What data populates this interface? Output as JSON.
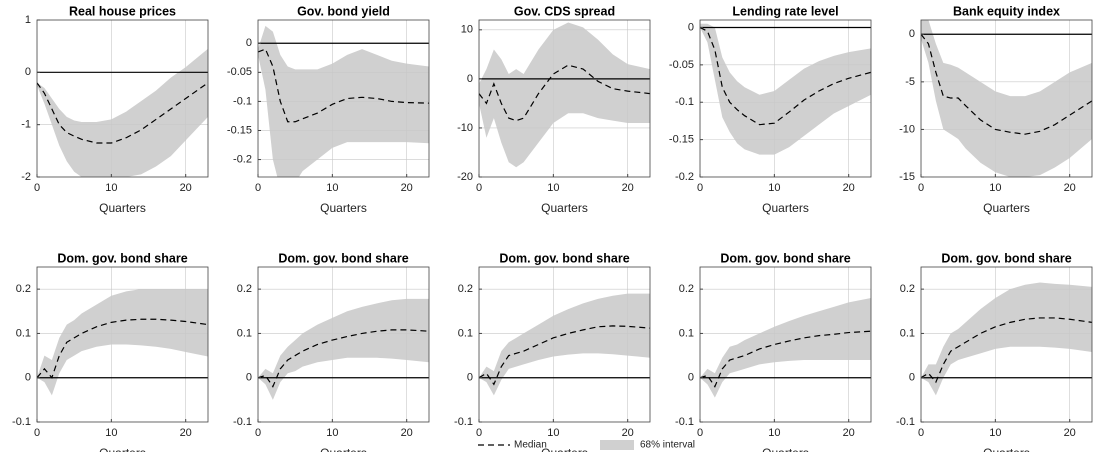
{
  "legend": {
    "median": "Median",
    "interval": "68% interval",
    "median_color": "#000000",
    "interval_color": "#d0d0d0"
  },
  "chart_data": [
    {
      "type": "band-line",
      "title": "Real house prices",
      "x_label": "Quarters",
      "x": [
        0,
        1,
        2,
        3,
        4,
        5,
        6,
        8,
        10,
        12,
        14,
        16,
        18,
        20,
        23
      ],
      "xlim": [
        0,
        23
      ],
      "xticks": [
        0,
        10,
        20
      ],
      "ylim": [
        -2,
        1
      ],
      "yticks": [
        -2,
        -1,
        0,
        1
      ],
      "grid": true,
      "median": [
        -0.2,
        -0.4,
        -0.7,
        -1.0,
        -1.15,
        -1.22,
        -1.28,
        -1.35,
        -1.35,
        -1.25,
        -1.1,
        -0.9,
        -0.7,
        -0.5,
        -0.2
      ],
      "lower": [
        -0.25,
        -0.6,
        -1.0,
        -1.4,
        -1.7,
        -1.9,
        -2.0,
        -2.0,
        -2.0,
        -2.0,
        -1.95,
        -1.8,
        -1.6,
        -1.3,
        -0.85
      ],
      "upper": [
        -0.2,
        -0.3,
        -0.5,
        -0.7,
        -0.85,
        -0.92,
        -0.95,
        -0.95,
        -0.9,
        -0.75,
        -0.55,
        -0.35,
        -0.1,
        0.1,
        0.45
      ]
    },
    {
      "type": "band-line",
      "title": "Gov. bond yield",
      "x_label": "Quarters",
      "x": [
        0,
        1,
        2,
        3,
        4,
        5,
        6,
        8,
        10,
        12,
        14,
        16,
        18,
        20,
        23
      ],
      "xlim": [
        0,
        23
      ],
      "xticks": [
        0,
        10,
        20
      ],
      "ylim": [
        -0.23,
        0.04
      ],
      "yticks": [
        -0.2,
        -0.15,
        -0.1,
        -0.05,
        0
      ],
      "grid": true,
      "median": [
        -0.015,
        -0.01,
        -0.04,
        -0.1,
        -0.135,
        -0.135,
        -0.13,
        -0.12,
        -0.105,
        -0.095,
        -0.093,
        -0.095,
        -0.1,
        -0.102,
        -0.103
      ],
      "lower": [
        -0.02,
        -0.08,
        -0.2,
        -0.25,
        -0.25,
        -0.24,
        -0.22,
        -0.2,
        -0.18,
        -0.17,
        -0.17,
        -0.17,
        -0.17,
        -0.17,
        -0.172
      ],
      "upper": [
        -0.01,
        0.03,
        0.02,
        -0.02,
        -0.04,
        -0.045,
        -0.045,
        -0.045,
        -0.035,
        -0.02,
        -0.01,
        -0.02,
        -0.03,
        -0.035,
        -0.04
      ]
    },
    {
      "type": "band-line",
      "title": "Gov. CDS spread",
      "x_label": "Quarters",
      "x": [
        0,
        1,
        2,
        3,
        4,
        5,
        6,
        8,
        10,
        12,
        14,
        16,
        18,
        20,
        23
      ],
      "xlim": [
        0,
        23
      ],
      "xticks": [
        0,
        10,
        20
      ],
      "ylim": [
        -20,
        12
      ],
      "yticks": [
        -20,
        -10,
        0,
        10
      ],
      "grid": true,
      "median": [
        -3,
        -5,
        -1,
        -5,
        -8,
        -8.5,
        -8,
        -3,
        1,
        2.8,
        2,
        -0.5,
        -2,
        -2.5,
        -3
      ],
      "lower": [
        -5,
        -12,
        -8,
        -13,
        -17,
        -18,
        -17,
        -13,
        -9,
        -7,
        -7,
        -8,
        -8.5,
        -9,
        -9
      ],
      "upper": [
        -1,
        2,
        6,
        4,
        1,
        2,
        1,
        6,
        10,
        11.5,
        10.5,
        8,
        5,
        3,
        2
      ]
    },
    {
      "type": "band-line",
      "title": "Lending rate level",
      "x_label": "Quarters",
      "x": [
        0,
        1,
        2,
        3,
        4,
        5,
        6,
        8,
        10,
        12,
        14,
        16,
        18,
        20,
        23
      ],
      "xlim": [
        0,
        23
      ],
      "xticks": [
        0,
        10,
        20
      ],
      "ylim": [
        -0.2,
        0.01
      ],
      "yticks": [
        -0.2,
        -0.15,
        -0.1,
        -0.05,
        0
      ],
      "grid": true,
      "median": [
        0,
        -0.005,
        -0.03,
        -0.08,
        -0.1,
        -0.11,
        -0.118,
        -0.13,
        -0.128,
        -0.113,
        -0.097,
        -0.085,
        -0.075,
        -0.068,
        -0.06
      ],
      "lower": [
        0,
        -0.02,
        -0.07,
        -0.12,
        -0.14,
        -0.155,
        -0.163,
        -0.17,
        -0.17,
        -0.16,
        -0.145,
        -0.13,
        -0.115,
        -0.105,
        -0.09
      ],
      "upper": [
        0.005,
        0.005,
        0,
        -0.04,
        -0.06,
        -0.072,
        -0.08,
        -0.09,
        -0.085,
        -0.07,
        -0.055,
        -0.045,
        -0.038,
        -0.033,
        -0.028
      ]
    },
    {
      "type": "band-line",
      "title": "Bank equity index",
      "x_label": "Quarters",
      "x": [
        0,
        1,
        2,
        3,
        4,
        5,
        6,
        8,
        10,
        12,
        14,
        16,
        18,
        20,
        23
      ],
      "xlim": [
        0,
        23
      ],
      "xticks": [
        0,
        10,
        20
      ],
      "ylim": [
        -15,
        1.5
      ],
      "yticks": [
        -15,
        -10,
        -5,
        0
      ],
      "grid": true,
      "median": [
        0,
        -1,
        -4,
        -6.5,
        -6.7,
        -6.7,
        -7.5,
        -9,
        -10,
        -10.3,
        -10.5,
        -10.2,
        -9.5,
        -8.5,
        -7
      ],
      "lower": [
        -0.5,
        -3,
        -7,
        -10,
        -10.5,
        -11,
        -12,
        -13.5,
        -14.5,
        -15,
        -15,
        -14.8,
        -14,
        -13,
        -11
      ],
      "upper": [
        1.5,
        1.5,
        -1,
        -3,
        -3.2,
        -3.5,
        -4,
        -5,
        -6,
        -6.5,
        -6.5,
        -6,
        -5,
        -4,
        -3
      ]
    },
    {
      "type": "band-line",
      "title": "Dom. gov. bond share",
      "x_label": "Quarters",
      "x": [
        0,
        1,
        2,
        3,
        4,
        5,
        6,
        8,
        10,
        12,
        14,
        16,
        18,
        20,
        23
      ],
      "xlim": [
        0,
        23
      ],
      "xticks": [
        0,
        10,
        20
      ],
      "ylim": [
        -0.1,
        0.25
      ],
      "yticks": [
        -0.1,
        0,
        0.1,
        0.2
      ],
      "grid": true,
      "median": [
        0,
        0.02,
        0,
        0.05,
        0.08,
        0.09,
        0.1,
        0.115,
        0.125,
        0.13,
        0.132,
        0.132,
        0.13,
        0.127,
        0.12
      ],
      "lower": [
        0,
        -0.01,
        -0.04,
        0.01,
        0.04,
        0.05,
        0.06,
        0.07,
        0.075,
        0.075,
        0.073,
        0.07,
        0.065,
        0.058,
        0.048
      ],
      "upper": [
        0,
        0.05,
        0.04,
        0.09,
        0.12,
        0.13,
        0.145,
        0.165,
        0.185,
        0.195,
        0.2,
        0.2,
        0.2,
        0.2,
        0.2
      ]
    },
    {
      "type": "band-line",
      "title": "Dom. gov. bond share",
      "x_label": "Quarters",
      "x": [
        0,
        1,
        2,
        3,
        4,
        5,
        6,
        8,
        10,
        12,
        14,
        16,
        18,
        20,
        23
      ],
      "xlim": [
        0,
        23
      ],
      "xticks": [
        0,
        10,
        20
      ],
      "ylim": [
        -0.1,
        0.25
      ],
      "yticks": [
        -0.1,
        0,
        0.1,
        0.2
      ],
      "grid": true,
      "median": [
        0,
        0.005,
        -0.02,
        0.02,
        0.04,
        0.05,
        0.06,
        0.075,
        0.085,
        0.093,
        0.1,
        0.105,
        0.108,
        0.108,
        0.105
      ],
      "lower": [
        0,
        -0.015,
        -0.05,
        -0.01,
        0.01,
        0.015,
        0.025,
        0.035,
        0.04,
        0.045,
        0.045,
        0.045,
        0.043,
        0.04,
        0.035
      ],
      "upper": [
        0,
        0.02,
        0.01,
        0.05,
        0.07,
        0.085,
        0.1,
        0.12,
        0.135,
        0.15,
        0.16,
        0.168,
        0.175,
        0.178,
        0.178
      ]
    },
    {
      "type": "band-line",
      "title": "Dom. gov. bond share",
      "x_label": "Quarters",
      "x": [
        0,
        1,
        2,
        3,
        4,
        5,
        6,
        8,
        10,
        12,
        14,
        16,
        18,
        20,
        23
      ],
      "xlim": [
        0,
        23
      ],
      "xticks": [
        0,
        10,
        20
      ],
      "ylim": [
        -0.1,
        0.25
      ],
      "yticks": [
        -0.1,
        0,
        0.1,
        0.2
      ],
      "grid": true,
      "median": [
        0,
        0.01,
        -0.015,
        0.025,
        0.05,
        0.055,
        0.06,
        0.075,
        0.09,
        0.1,
        0.108,
        0.115,
        0.117,
        0.116,
        0.112
      ],
      "lower": [
        0,
        -0.01,
        -0.04,
        -0.005,
        0.02,
        0.025,
        0.03,
        0.04,
        0.048,
        0.052,
        0.055,
        0.055,
        0.053,
        0.05,
        0.045
      ],
      "upper": [
        0,
        0.025,
        0.015,
        0.06,
        0.08,
        0.09,
        0.1,
        0.12,
        0.14,
        0.155,
        0.168,
        0.178,
        0.185,
        0.19,
        0.19
      ]
    },
    {
      "type": "band-line",
      "title": "Dom. gov. bond share",
      "x_label": "Quarters",
      "x": [
        0,
        1,
        2,
        3,
        4,
        5,
        6,
        8,
        10,
        12,
        14,
        16,
        18,
        20,
        23
      ],
      "xlim": [
        0,
        23
      ],
      "xticks": [
        0,
        10,
        20
      ],
      "ylim": [
        -0.1,
        0.25
      ],
      "yticks": [
        -0.1,
        0,
        0.1,
        0.2
      ],
      "grid": true,
      "median": [
        0,
        0.005,
        -0.02,
        0.02,
        0.04,
        0.045,
        0.05,
        0.065,
        0.075,
        0.083,
        0.09,
        0.095,
        0.098,
        0.102,
        0.105
      ],
      "lower": [
        0,
        -0.015,
        -0.045,
        -0.01,
        0.01,
        0.015,
        0.02,
        0.03,
        0.035,
        0.038,
        0.04,
        0.04,
        0.04,
        0.04,
        0.04
      ],
      "upper": [
        0,
        0.02,
        0.01,
        0.045,
        0.07,
        0.075,
        0.085,
        0.1,
        0.115,
        0.128,
        0.14,
        0.15,
        0.16,
        0.17,
        0.18
      ]
    },
    {
      "type": "band-line",
      "title": "Dom. gov. bond share",
      "x_label": "Quarters",
      "x": [
        0,
        1,
        2,
        3,
        4,
        5,
        6,
        8,
        10,
        12,
        14,
        16,
        18,
        20,
        23
      ],
      "xlim": [
        0,
        23
      ],
      "xticks": [
        0,
        10,
        20
      ],
      "ylim": [
        -0.1,
        0.25
      ],
      "yticks": [
        -0.1,
        0,
        0.1,
        0.2
      ],
      "grid": true,
      "median": [
        0,
        0.01,
        -0.01,
        0.03,
        0.06,
        0.07,
        0.08,
        0.1,
        0.115,
        0.125,
        0.132,
        0.135,
        0.135,
        0.132,
        0.125
      ],
      "lower": [
        0,
        -0.01,
        -0.04,
        0,
        0.03,
        0.04,
        0.045,
        0.055,
        0.065,
        0.07,
        0.07,
        0.07,
        0.068,
        0.065,
        0.058
      ],
      "upper": [
        0,
        0.03,
        0.03,
        0.07,
        0.1,
        0.11,
        0.125,
        0.155,
        0.18,
        0.2,
        0.21,
        0.215,
        0.212,
        0.21,
        0.205
      ]
    }
  ]
}
